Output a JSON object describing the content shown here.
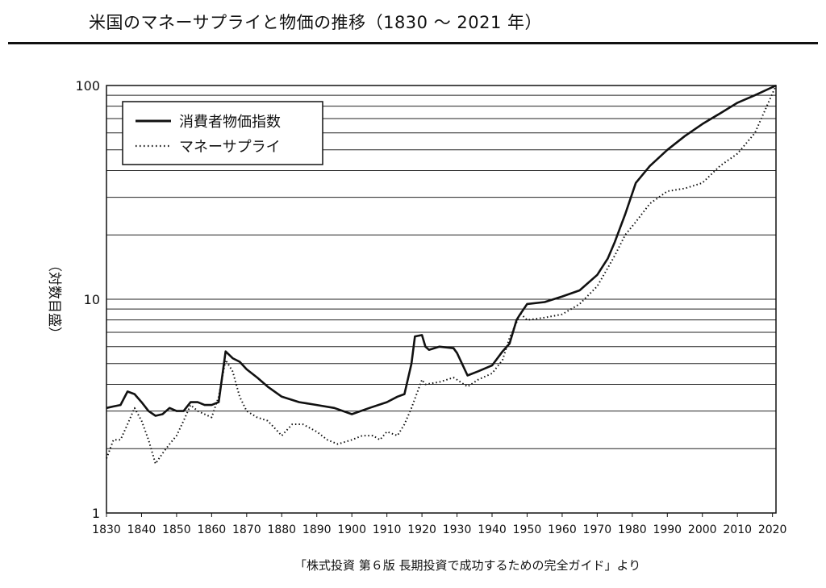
{
  "title": "米国のマネーサプライと物価の推移（1830 ～ 2021 年）",
  "source": "「株式投資 第６版 長期投資で成功するための完全ガイド」より",
  "chart_data": {
    "type": "line",
    "ylabel": "（対数目盛）",
    "yscale": "log",
    "ylim": [
      1,
      100
    ],
    "xlim": [
      1830,
      2021
    ],
    "y_ticks": [
      1,
      10,
      100
    ],
    "y_tick_labels": [
      "1",
      "10",
      "100"
    ],
    "x_ticks": [
      1830,
      1840,
      1850,
      1860,
      1870,
      1880,
      1890,
      1900,
      1910,
      1920,
      1930,
      1940,
      1950,
      1960,
      1970,
      1980,
      1990,
      2000,
      2010,
      2020
    ],
    "grid": true,
    "legend_position": "top-left",
    "series": [
      {
        "name": "消費者物価指数",
        "style": "solid",
        "color": "#111111",
        "x": [
          1830,
          1832,
          1834,
          1836,
          1838,
          1840,
          1842,
          1844,
          1846,
          1848,
          1850,
          1852,
          1854,
          1856,
          1858,
          1860,
          1862,
          1864,
          1866,
          1868,
          1870,
          1873,
          1876,
          1880,
          1885,
          1890,
          1895,
          1900,
          1905,
          1910,
          1913,
          1915,
          1917,
          1918,
          1920,
          1921,
          1922,
          1925,
          1929,
          1930,
          1933,
          1936,
          1940,
          1943,
          1945,
          1947,
          1948,
          1950,
          1955,
          1960,
          1965,
          1970,
          1973,
          1975,
          1978,
          1981,
          1985,
          1990,
          1995,
          2000,
          2005,
          2010,
          2015,
          2021
        ],
        "values": [
          3.1,
          3.15,
          3.2,
          3.7,
          3.6,
          3.3,
          3.0,
          2.85,
          2.9,
          3.1,
          3.0,
          3.0,
          3.3,
          3.3,
          3.2,
          3.2,
          3.3,
          5.7,
          5.3,
          5.1,
          4.7,
          4.3,
          3.9,
          3.5,
          3.3,
          3.2,
          3.1,
          2.9,
          3.1,
          3.3,
          3.5,
          3.6,
          5.0,
          6.7,
          6.8,
          6.0,
          5.8,
          6.0,
          5.9,
          5.6,
          4.4,
          4.6,
          4.9,
          5.7,
          6.2,
          8.0,
          8.5,
          9.5,
          9.7,
          10.3,
          11.0,
          13.0,
          15.5,
          18.5,
          25.0,
          35.0,
          42.0,
          50.0,
          58.0,
          66.0,
          74.0,
          83.0,
          90.0,
          100.0
        ]
      },
      {
        "name": "マネーサプライ",
        "style": "dotted",
        "color": "#111111",
        "x": [
          1830,
          1832,
          1834,
          1836,
          1838,
          1840,
          1842,
          1844,
          1846,
          1848,
          1850,
          1852,
          1854,
          1856,
          1858,
          1860,
          1862,
          1864,
          1866,
          1868,
          1870,
          1873,
          1876,
          1880,
          1883,
          1886,
          1890,
          1893,
          1896,
          1900,
          1903,
          1906,
          1908,
          1910,
          1913,
          1915,
          1917,
          1920,
          1921,
          1925,
          1929,
          1930,
          1933,
          1936,
          1940,
          1943,
          1945,
          1947,
          1948,
          1950,
          1955,
          1960,
          1965,
          1970,
          1973,
          1975,
          1978,
          1981,
          1985,
          1990,
          1995,
          2000,
          2005,
          2010,
          2015,
          2021
        ],
        "values": [
          1.8,
          2.2,
          2.2,
          2.6,
          3.1,
          2.7,
          2.2,
          1.7,
          1.9,
          2.1,
          2.3,
          2.7,
          3.2,
          3.0,
          2.9,
          2.8,
          3.5,
          5.2,
          4.6,
          3.5,
          3.0,
          2.8,
          2.7,
          2.3,
          2.6,
          2.6,
          2.4,
          2.2,
          2.1,
          2.2,
          2.3,
          2.3,
          2.2,
          2.4,
          2.3,
          2.6,
          3.1,
          4.2,
          4.0,
          4.1,
          4.3,
          4.2,
          3.9,
          4.2,
          4.5,
          5.2,
          6.6,
          7.8,
          8.6,
          8.0,
          8.2,
          8.5,
          9.5,
          11.5,
          14.0,
          16.0,
          20.0,
          23.0,
          28.0,
          32.0,
          33.0,
          35.0,
          42.0,
          48.0,
          60.0,
          100.0
        ]
      }
    ]
  }
}
